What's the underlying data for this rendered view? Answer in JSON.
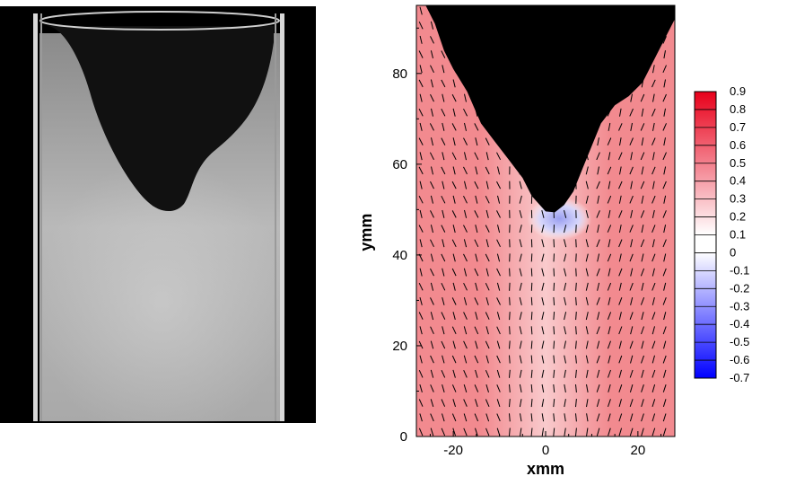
{
  "photo": {
    "description_icon": "cylindrical-bubble-photo"
  },
  "chart_data": {
    "type": "heatmap",
    "title": "",
    "xlabel": "xmm",
    "ylabel": "ymm",
    "xlim": [
      -28,
      28
    ],
    "ylim": [
      0,
      95
    ],
    "x_ticks": [
      -20,
      0,
      20
    ],
    "x_tick_labels": [
      "-20",
      "0",
      "20"
    ],
    "y_ticks": [
      0,
      20,
      40,
      60,
      80
    ],
    "y_tick_labels": [
      "0",
      "20",
      "40",
      "60",
      "80"
    ],
    "colorbar": {
      "min": -0.7,
      "max": 0.9,
      "levels": [
        0.9,
        0.8,
        0.7,
        0.6,
        0.5,
        0.4,
        0.3,
        0.2,
        0.1,
        0,
        -0.1,
        -0.2,
        -0.3,
        -0.4,
        -0.5,
        -0.6,
        -0.7
      ],
      "level_labels": [
        "0.9",
        "0.8",
        "0.7",
        "0.6",
        "0.5",
        "0.4",
        "0.3",
        "0.2",
        "0.1",
        "0",
        "-0.1",
        "-0.2",
        "-0.3",
        "-0.4",
        "-0.5",
        "-0.6",
        "-0.7"
      ],
      "colors": {
        "low": "#0000ff",
        "mid": "#ffffff",
        "high": "#e8001a"
      }
    },
    "bubble_outline": [
      [
        -28,
        95
      ],
      [
        -26,
        95
      ],
      [
        -24,
        91
      ],
      [
        -22,
        85
      ],
      [
        -20,
        81
      ],
      [
        -17,
        76
      ],
      [
        -14,
        69
      ],
      [
        -11,
        65
      ],
      [
        -8,
        61
      ],
      [
        -5,
        57
      ],
      [
        -3,
        53
      ],
      [
        0,
        49.6
      ],
      [
        2,
        49.4
      ],
      [
        4,
        51
      ],
      [
        6,
        54
      ],
      [
        8,
        59
      ],
      [
        10,
        64
      ],
      [
        12,
        69
      ],
      [
        15,
        73
      ],
      [
        18,
        75
      ],
      [
        21,
        78
      ],
      [
        24,
        84
      ],
      [
        26,
        88
      ],
      [
        28,
        92
      ],
      [
        28,
        95
      ]
    ],
    "velocity_field_note_colors": {
      "vector": "#000000"
    }
  }
}
